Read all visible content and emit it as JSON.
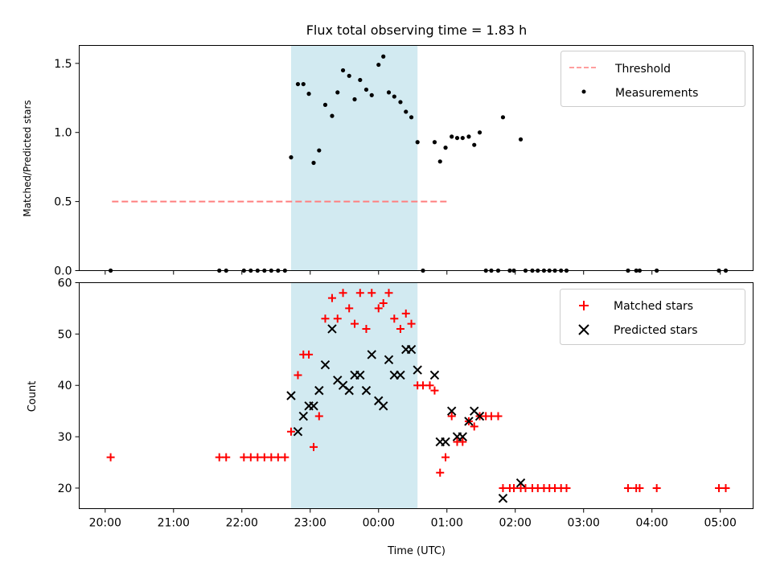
{
  "chart_data": [
    {
      "type": "scatter",
      "title": "Flux total observing time = 1.83 h",
      "xlabel": "",
      "ylabel": "Matched/Predicted stars",
      "ylim": [
        0,
        1.63
      ],
      "yticks": [
        "0.0",
        "0.5",
        "1.0",
        "1.5"
      ],
      "shaded_x_range": [
        22.72,
        24.57
      ],
      "legend": {
        "position": "top-right",
        "entries": [
          "Threshold",
          "Measurements"
        ]
      },
      "threshold": {
        "name": "Threshold",
        "x": [
          20.1,
          25.02
        ],
        "y": 0.5,
        "color": "#ff7f7f"
      },
      "series": [
        {
          "name": "Measurements",
          "color": "#000000",
          "points": [
            [
              20.08,
              0
            ],
            [
              21.67,
              0
            ],
            [
              21.77,
              0
            ],
            [
              22.03,
              0
            ],
            [
              22.13,
              0
            ],
            [
              22.23,
              0
            ],
            [
              22.33,
              0
            ],
            [
              22.43,
              0
            ],
            [
              22.53,
              0
            ],
            [
              22.63,
              0
            ],
            [
              22.72,
              0.82
            ],
            [
              22.82,
              1.35
            ],
            [
              22.9,
              1.35
            ],
            [
              22.98,
              1.28
            ],
            [
              23.05,
              0.78
            ],
            [
              23.13,
              0.87
            ],
            [
              23.22,
              1.2
            ],
            [
              23.32,
              1.12
            ],
            [
              23.4,
              1.29
            ],
            [
              23.48,
              1.45
            ],
            [
              23.57,
              1.41
            ],
            [
              23.65,
              1.24
            ],
            [
              23.73,
              1.38
            ],
            [
              23.82,
              1.31
            ],
            [
              23.9,
              1.27
            ],
            [
              24.0,
              1.49
            ],
            [
              24.07,
              1.55
            ],
            [
              24.15,
              1.29
            ],
            [
              24.23,
              1.26
            ],
            [
              24.32,
              1.22
            ],
            [
              24.4,
              1.15
            ],
            [
              24.48,
              1.11
            ],
            [
              24.57,
              0.93
            ],
            [
              24.65,
              0
            ],
            [
              24.82,
              0.93
            ],
            [
              24.9,
              0.79
            ],
            [
              24.98,
              0.89
            ],
            [
              25.07,
              0.97
            ],
            [
              25.15,
              0.96
            ],
            [
              25.23,
              0.96
            ],
            [
              25.32,
              0.97
            ],
            [
              25.4,
              0.91
            ],
            [
              25.48,
              1.0
            ],
            [
              25.57,
              0
            ],
            [
              25.65,
              0
            ],
            [
              25.75,
              0
            ],
            [
              25.82,
              1.11
            ],
            [
              25.92,
              0
            ],
            [
              25.98,
              0
            ],
            [
              26.08,
              0.95
            ],
            [
              26.15,
              0
            ],
            [
              26.25,
              0
            ],
            [
              26.33,
              0
            ],
            [
              26.42,
              0
            ],
            [
              26.5,
              0
            ],
            [
              26.58,
              0
            ],
            [
              26.67,
              0
            ],
            [
              26.75,
              0
            ],
            [
              27.65,
              0
            ],
            [
              27.77,
              0
            ],
            [
              27.82,
              0
            ],
            [
              28.07,
              0
            ],
            [
              28.98,
              0
            ],
            [
              29.08,
              0
            ]
          ]
        }
      ]
    },
    {
      "type": "scatter",
      "title": "",
      "xlabel": "Time (UTC)",
      "ylabel": "Count",
      "ylim": [
        16,
        60
      ],
      "yticks": [
        "20",
        "30",
        "40",
        "50",
        "60"
      ],
      "x_tick_labels": [
        "20:00",
        "21:00",
        "22:00",
        "23:00",
        "00:00",
        "01:00",
        "02:00",
        "03:00",
        "04:00",
        "05:00"
      ],
      "shaded_x_range": [
        22.72,
        24.57
      ],
      "legend": {
        "position": "top-right",
        "entries": [
          "Matched stars",
          "Predicted stars"
        ]
      },
      "series": [
        {
          "name": "Matched stars",
          "marker": "+",
          "color": "#ff0000",
          "points": [
            [
              20.08,
              26
            ],
            [
              21.67,
              26
            ],
            [
              21.77,
              26
            ],
            [
              22.03,
              26
            ],
            [
              22.13,
              26
            ],
            [
              22.23,
              26
            ],
            [
              22.33,
              26
            ],
            [
              22.43,
              26
            ],
            [
              22.53,
              26
            ],
            [
              22.63,
              26
            ],
            [
              22.72,
              31
            ],
            [
              22.82,
              42
            ],
            [
              22.9,
              46
            ],
            [
              22.98,
              46
            ],
            [
              23.05,
              28
            ],
            [
              23.13,
              34
            ],
            [
              23.22,
              53
            ],
            [
              23.32,
              57
            ],
            [
              23.4,
              53
            ],
            [
              23.48,
              58
            ],
            [
              23.57,
              55
            ],
            [
              23.65,
              52
            ],
            [
              23.73,
              58
            ],
            [
              23.82,
              51
            ],
            [
              23.9,
              58
            ],
            [
              24.0,
              55
            ],
            [
              24.07,
              56
            ],
            [
              24.15,
              58
            ],
            [
              24.23,
              53
            ],
            [
              24.32,
              51
            ],
            [
              24.4,
              54
            ],
            [
              24.48,
              52
            ],
            [
              24.57,
              40
            ],
            [
              24.65,
              40
            ],
            [
              24.75,
              40
            ],
            [
              24.82,
              39
            ],
            [
              24.9,
              23
            ],
            [
              24.98,
              26
            ],
            [
              25.07,
              34
            ],
            [
              25.15,
              29
            ],
            [
              25.23,
              29
            ],
            [
              25.32,
              33
            ],
            [
              25.4,
              32
            ],
            [
              25.48,
              34
            ],
            [
              25.57,
              34
            ],
            [
              25.65,
              34
            ],
            [
              25.75,
              34
            ],
            [
              25.82,
              20
            ],
            [
              25.92,
              20
            ],
            [
              25.98,
              20
            ],
            [
              26.08,
              20
            ],
            [
              26.15,
              20
            ],
            [
              26.25,
              20
            ],
            [
              26.33,
              20
            ],
            [
              26.42,
              20
            ],
            [
              26.5,
              20
            ],
            [
              26.58,
              20
            ],
            [
              26.67,
              20
            ],
            [
              26.75,
              20
            ],
            [
              27.65,
              20
            ],
            [
              27.77,
              20
            ],
            [
              27.82,
              20
            ],
            [
              28.07,
              20
            ],
            [
              28.98,
              20
            ],
            [
              29.08,
              20
            ]
          ]
        },
        {
          "name": "Predicted stars",
          "marker": "x",
          "color": "#000000",
          "points": [
            [
              22.72,
              38
            ],
            [
              22.82,
              31
            ],
            [
              22.9,
              34
            ],
            [
              22.98,
              36
            ],
            [
              23.05,
              36
            ],
            [
              23.13,
              39
            ],
            [
              23.22,
              44
            ],
            [
              23.32,
              51
            ],
            [
              23.4,
              41
            ],
            [
              23.48,
              40
            ],
            [
              23.57,
              39
            ],
            [
              23.65,
              42
            ],
            [
              23.73,
              42
            ],
            [
              23.82,
              39
            ],
            [
              23.9,
              46
            ],
            [
              24.0,
              37
            ],
            [
              24.07,
              36
            ],
            [
              24.15,
              45
            ],
            [
              24.23,
              42
            ],
            [
              24.32,
              42
            ],
            [
              24.4,
              47
            ],
            [
              24.48,
              47
            ],
            [
              24.57,
              43
            ],
            [
              24.82,
              42
            ],
            [
              24.9,
              29
            ],
            [
              24.98,
              29
            ],
            [
              25.07,
              35
            ],
            [
              25.15,
              30
            ],
            [
              25.23,
              30
            ],
            [
              25.32,
              33
            ],
            [
              25.4,
              35
            ],
            [
              25.48,
              34
            ],
            [
              25.82,
              18
            ],
            [
              26.08,
              21
            ]
          ]
        }
      ]
    }
  ]
}
